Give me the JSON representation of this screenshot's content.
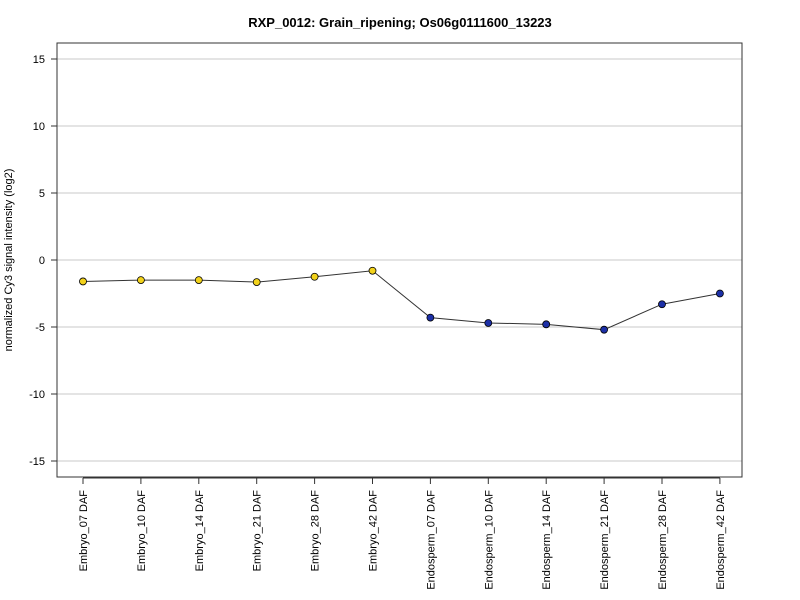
{
  "chart_data": {
    "type": "line",
    "title": "RXP_0012: Grain_ripening; Os06g0111600_13223",
    "xlabel": "",
    "ylabel": "normalized Cy3 signal intensity (log2)",
    "ylim": [
      -16,
      16
    ],
    "yticks": [
      -15,
      -10,
      -5,
      0,
      5,
      10,
      15
    ],
    "grid": true,
    "categories": [
      "Embryo_07 DAF",
      "Embryo_10 DAF",
      "Embryo_14 DAF",
      "Embryo_21 DAF",
      "Embryo_28 DAF",
      "Embryo_42 DAF",
      "Endosperm_07 DAF",
      "Endosperm_10 DAF",
      "Endosperm_14 DAF",
      "Endosperm_21 DAF",
      "Endosperm_28 DAF",
      "Endosperm_42 DAF"
    ],
    "values": [
      -1.6,
      -1.5,
      -1.5,
      -1.65,
      -1.25,
      -0.8,
      -4.3,
      -4.7,
      -4.8,
      -5.2,
      -3.3,
      -2.5
    ],
    "point_colors": [
      "#f2d21b",
      "#f2d21b",
      "#f2d21b",
      "#f2d21b",
      "#f2d21b",
      "#f2d21b",
      "#1c2fa6",
      "#1c2fa6",
      "#1c2fa6",
      "#1c2fa6",
      "#1c2fa6",
      "#1c2fa6"
    ],
    "line_color": "#333333",
    "grid_color": "#c8c8c8"
  }
}
